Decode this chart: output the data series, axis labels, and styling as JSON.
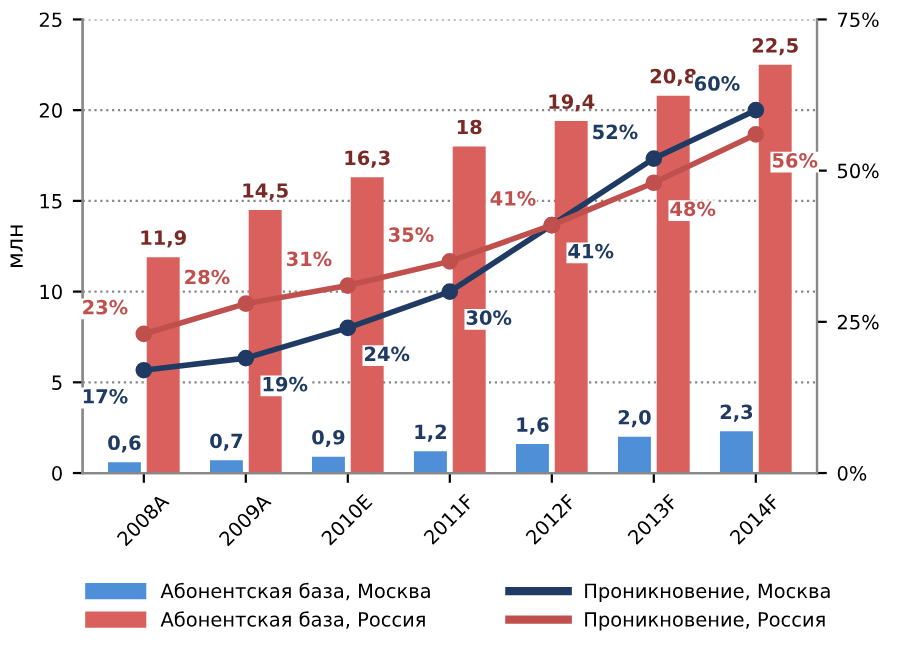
{
  "chart_data": {
    "type": "bar",
    "ylabel": "млн",
    "categories": [
      "2008A",
      "2009A",
      "2010E",
      "2011F",
      "2012F",
      "2013F",
      "2014F"
    ],
    "series": [
      {
        "name": "Абонентская база, Москва",
        "color": "#4f8fd8",
        "values": [
          0.6,
          0.7,
          0.9,
          1.2,
          1.6,
          2.0,
          2.3
        ],
        "value_labels": [
          "0,6",
          "0,7",
          "0,9",
          "1,2",
          "1,6",
          "2,0",
          "2,3"
        ]
      },
      {
        "name": "Абонентская база, Россия",
        "color": "#d9605c",
        "values": [
          11.9,
          14.5,
          16.3,
          18,
          19.4,
          20.8,
          22.5
        ],
        "value_labels": [
          "11,9",
          "14,5",
          "16,3",
          "18",
          "19,4",
          "20,8",
          "22,5"
        ]
      },
      {
        "name": "Проникновение, Москва",
        "type": "line",
        "axis": "y2",
        "color": "#1f3b63",
        "values": [
          17,
          19,
          24,
          30,
          41,
          52,
          60
        ],
        "value_labels": [
          "17%",
          "19%",
          "24%",
          "30%",
          "41%",
          "52%",
          "60%"
        ]
      },
      {
        "name": "Проникновение, Россия",
        "type": "line",
        "axis": "y2",
        "color": "#c0504d",
        "values": [
          23,
          28,
          31,
          35,
          41,
          48,
          56
        ],
        "value_labels": [
          "23%",
          "28%",
          "31%",
          "35%",
          "41%",
          "48%",
          "56%"
        ]
      }
    ],
    "ylim": [
      0,
      25
    ],
    "yticks": [
      0,
      5,
      10,
      15,
      20,
      25
    ],
    "y2lim": [
      0,
      75
    ],
    "y2ticks": [
      {
        "value": 0,
        "label": "0%"
      },
      {
        "value": 25,
        "label": "25%"
      },
      {
        "value": 50,
        "label": "50%"
      },
      {
        "value": 75,
        "label": "75%"
      }
    ],
    "grid": "y",
    "legend": "bottom",
    "marker": "circle",
    "line_style": "solid"
  }
}
